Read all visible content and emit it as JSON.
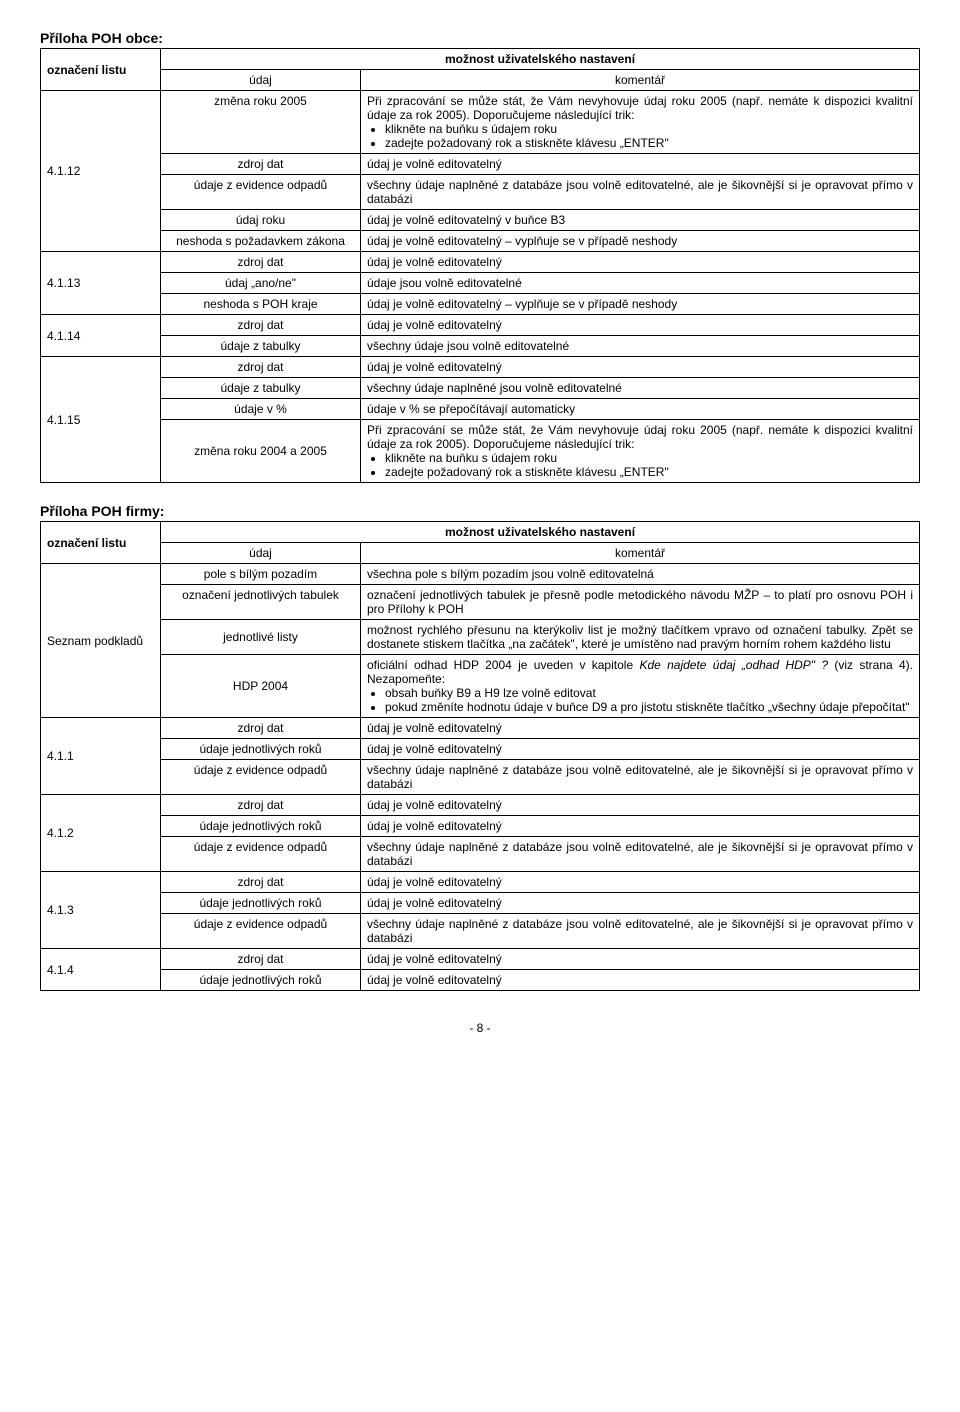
{
  "section1": {
    "title": "Příloha POH obce:",
    "headers": {
      "oznaceni": "označení listu",
      "moznost": "možnost uživatelského nastavení",
      "udaj": "údaj",
      "komentar": "komentář"
    },
    "rows": {
      "r4112_label": "4.1.12",
      "r4112_c1_udaj": "změna roku 2005",
      "r4112_c1_kom_intro": "Při zpracování se může stát, že Vám nevyhovuje údaj roku 2005 (např. nemáte k dispozici kvalitní údaje za rok 2005). Doporučujeme následující trik:",
      "r4112_c1_kom_b1": "klikněte na buňku s údajem roku",
      "r4112_c1_kom_b2": "zadejte požadovaný rok a stiskněte klávesu „ENTER\"",
      "r4112_c2_udaj": "zdroj dat",
      "r4112_c2_kom": "údaj je volně editovatelný",
      "r4112_c3_udaj": "údaje z evidence odpadů",
      "r4112_c3_kom": "všechny údaje naplněné z databáze jsou volně editovatelné, ale je šikovnější si je opravovat přímo v databázi",
      "r4112_c4_udaj": "údaj roku",
      "r4112_c4_kom": "údaj je volně editovatelný v buňce B3",
      "r4112_c5_udaj": "neshoda s požadavkem zákona",
      "r4112_c5_kom": "údaj je volně editovatelný – vyplňuje se v případě neshody",
      "r4113_label": "4.1.13",
      "r4113_c1_udaj": "zdroj dat",
      "r4113_c1_kom": "údaj je volně editovatelný",
      "r4113_c2_udaj": "údaj „ano/ne\"",
      "r4113_c2_kom": "údaje jsou volně editovatelné",
      "r4113_c3_udaj": "neshoda s POH kraje",
      "r4113_c3_kom": "údaj je volně editovatelný – vyplňuje se v případě neshody",
      "r4114_label": "4.1.14",
      "r4114_c1_udaj": "zdroj dat",
      "r4114_c1_kom": "údaj je volně editovatelný",
      "r4114_c2_udaj": "údaje z tabulky",
      "r4114_c2_kom": "všechny  údaje jsou volně editovatelné",
      "r4115_label": "4.1.15",
      "r4115_c1_udaj": "zdroj dat",
      "r4115_c1_kom": "údaj je volně editovatelný",
      "r4115_c2_udaj": "údaje z tabulky",
      "r4115_c2_kom": "všechny údaje naplněné jsou volně editovatelné",
      "r4115_c3_udaj": "údaje v %",
      "r4115_c3_kom": "údaje v % se přepočítávají automaticky",
      "r4115_c4_udaj": "změna roku 2004 a 2005",
      "r4115_c4_kom_intro": "Při zpracování se může stát, že Vám nevyhovuje údaj roku 2005 (např. nemáte k dispozici kvalitní údaje za rok 2005). Doporučujeme následující trik:",
      "r4115_c4_kom_b1": "klikněte na buňku s údajem roku",
      "r4115_c4_kom_b2": "zadejte požadovaný rok a stiskněte klávesu „ENTER\""
    }
  },
  "section2": {
    "title": "Příloha POH firmy:",
    "headers": {
      "oznaceni": "označení listu",
      "moznost": "možnost uživatelského nastavení",
      "udaj": "údaj",
      "komentar": "komentář"
    },
    "rows": {
      "sp_label": "Seznam podkladů",
      "sp_c1_udaj": "pole s bílým pozadím",
      "sp_c1_kom": "všechna pole s bílým pozadím jsou volně editovatelná",
      "sp_c2_udaj": "označení jednotlivých tabulek",
      "sp_c2_kom": "označení jednotlivých tabulek je přesně podle metodického návodu MŽP – to platí pro osnovu POH i pro Přílohy k POH",
      "sp_c3_udaj": "jednotlivé listy",
      "sp_c3_kom": "možnost rychlého přesunu na kterýkoliv list je možný tlačítkem vpravo od označení tabulky. Zpět se dostanete stiskem tlačítka „na začátek\", které je umístěno nad pravým horním rohem každého listu",
      "sp_c4_udaj": "HDP 2004",
      "sp_c4_kom_intro1": "oficiální odhad HDP 2004 je uveden v kapitole ",
      "sp_c4_kom_italic": "Kde najdete údaj „odhad HDP\" ?",
      "sp_c4_kom_intro2": "(viz strana 4). Nezapomeňte:",
      "sp_c4_kom_b1": "obsah buňky B9 a H9 lze volně editovat",
      "sp_c4_kom_b2": "pokud změníte hodnotu údaje v buňce D9 a pro jistotu stiskněte tlačítko „všechny údaje přepočítat\"",
      "r411_label": "4.1.1",
      "r411_c1_udaj": "zdroj dat",
      "r411_c1_kom": "údaj je volně editovatelný",
      "r411_c2_udaj": "údaje jednotlivých roků",
      "r411_c2_kom": "údaj je volně editovatelný",
      "r411_c3_udaj": "údaje z evidence odpadů",
      "r411_c3_kom": "všechny údaje naplněné z databáze jsou volně editovatelné, ale je šikovnější si je opravovat přímo v databázi",
      "r412_label": "4.1.2",
      "r412_c1_udaj": "zdroj dat",
      "r412_c1_kom": "údaj je volně editovatelný",
      "r412_c2_udaj": "údaje jednotlivých roků",
      "r412_c2_kom": "údaj je volně editovatelný",
      "r412_c3_udaj": "údaje z evidence odpadů",
      "r412_c3_kom": "všechny údaje naplněné z databáze jsou volně editovatelné, ale je šikovnější si je opravovat přímo v databázi",
      "r413_label": "4.1.3",
      "r413_c1_udaj": "zdroj dat",
      "r413_c1_kom": "údaj je volně editovatelný",
      "r413_c2_udaj": "údaje jednotlivých roků",
      "r413_c2_kom": "údaj je volně editovatelný",
      "r413_c3_udaj": "údaje z evidence odpadů",
      "r413_c3_kom": "všechny údaje naplněné z databáze jsou volně editovatelné, ale je šikovnější si je opravovat přímo v databázi",
      "r414_label": "4.1.4",
      "r414_c1_udaj": "zdroj dat",
      "r414_c1_kom": "údaj je volně editovatelný",
      "r414_c2_udaj": "údaje jednotlivých roků",
      "r414_c2_kom": "údaj je volně editovatelný"
    }
  },
  "pageNumber": "- 8 -"
}
